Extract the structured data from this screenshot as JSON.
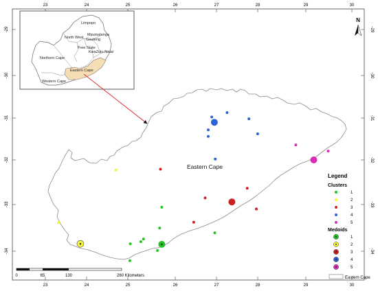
{
  "map": {
    "region_label": "Eastern Cape",
    "top_ticks": [
      "23",
      "24",
      "25",
      "26",
      "27",
      "28",
      "29",
      "30"
    ],
    "bottom_ticks": [
      "23",
      "24",
      "25",
      "26",
      "27",
      "28",
      "29",
      "30"
    ],
    "left_ticks": [
      "-29",
      "-30",
      "-31",
      "-32",
      "-33",
      "-34"
    ],
    "right_ticks": [
      "-29",
      "-30",
      "-31",
      "-32",
      "-33",
      "-34"
    ]
  },
  "inset": {
    "provinces": [
      "Limpopo",
      "North West",
      "Mpumalanga",
      "Gauteng",
      "Free State",
      "KwaZulu-Natal",
      "Northern Cape",
      "Eastern Cape",
      "Western Cape"
    ],
    "highlight_color": "#f5deb3",
    "arrow_color": "#d62020"
  },
  "north_arrow": {
    "label": "N"
  },
  "scale_bar": {
    "labels": [
      "0",
      "65",
      "130",
      "260 Kilometers"
    ]
  },
  "legend": {
    "title": "Legend",
    "clusters_title": "Clusters",
    "medoids_title": "Medoids",
    "clusters": [
      {
        "label": "1",
        "color": "#22c322"
      },
      {
        "label": "2",
        "color": "#f5f53a"
      },
      {
        "label": "3",
        "color": "#cc2020"
      },
      {
        "label": "4",
        "color": "#2a62d8"
      },
      {
        "label": "5",
        "color": "#d42fb5"
      }
    ],
    "medoids": [
      {
        "label": "1",
        "color": "#22c322"
      },
      {
        "label": "2",
        "color": "#f5f53a"
      },
      {
        "label": "3",
        "color": "#cc2020"
      },
      {
        "label": "4",
        "color": "#2a62d8"
      },
      {
        "label": "5",
        "color": "#d42fb5"
      }
    ],
    "boundary_label": "Eastern Cape"
  },
  "points": [
    {
      "lon": 26.8,
      "lat": -30.98,
      "cluster": 4
    },
    {
      "lon": 27.15,
      "lat": -30.88,
      "cluster": 4
    },
    {
      "lon": 27.65,
      "lat": -31.02,
      "cluster": 4
    },
    {
      "lon": 26.72,
      "lat": -31.27,
      "cluster": 4
    },
    {
      "lon": 26.72,
      "lat": -31.42,
      "cluster": 4
    },
    {
      "lon": 27.85,
      "lat": -31.36,
      "cluster": 4
    },
    {
      "lon": 26.88,
      "lat": -31.93,
      "cluster": 4
    },
    {
      "lon": 28.72,
      "lat": -31.61,
      "cluster": 5
    },
    {
      "lon": 29.46,
      "lat": -31.75,
      "cluster": 5
    },
    {
      "lon": 25.63,
      "lat": -32.16,
      "cluster": 3
    },
    {
      "lon": 27.61,
      "lat": -32.59,
      "cluster": 3
    },
    {
      "lon": 26.65,
      "lat": -32.81,
      "cluster": 3
    },
    {
      "lon": 27.82,
      "lat": -33.06,
      "cluster": 3
    },
    {
      "lon": 26.39,
      "lat": -33.36,
      "cluster": 3
    },
    {
      "lon": 24.61,
      "lat": -32.18,
      "cluster": 2
    },
    {
      "lon": 23.3,
      "lat": -33.37,
      "cluster": 2
    },
    {
      "lon": 25.66,
      "lat": -33.02,
      "cluster": 1
    },
    {
      "lon": 25.61,
      "lat": -33.49,
      "cluster": 1
    },
    {
      "lon": 26.87,
      "lat": -33.6,
      "cluster": 1
    },
    {
      "lon": 25.18,
      "lat": -33.8,
      "cluster": 1
    },
    {
      "lon": 25.24,
      "lat": -33.74,
      "cluster": 1
    },
    {
      "lon": 24.94,
      "lat": -33.85,
      "cluster": 1
    },
    {
      "lon": 25.56,
      "lat": -34.0,
      "cluster": 1
    },
    {
      "lon": 24.93,
      "lat": -34.23,
      "cluster": 1
    }
  ],
  "medoid_points": [
    {
      "lon": 26.86,
      "lat": -31.1,
      "cluster": 4
    },
    {
      "lon": 29.13,
      "lat": -31.95,
      "cluster": 5
    },
    {
      "lon": 27.26,
      "lat": -32.9,
      "cluster": 3
    },
    {
      "lon": 23.8,
      "lat": -33.85,
      "cluster": 2
    },
    {
      "lon": 25.66,
      "lat": -33.86,
      "cluster": 1
    }
  ]
}
